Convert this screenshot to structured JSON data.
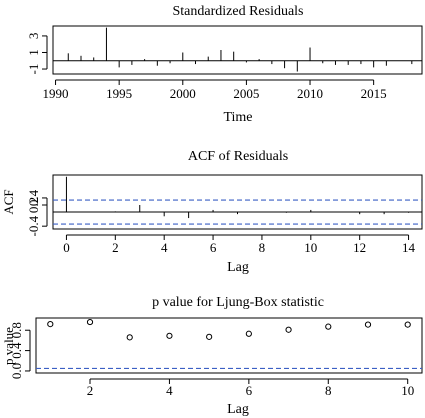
{
  "chart_data": [
    {
      "type": "bar",
      "title": "Standardized Residuals",
      "xlabel": "Time",
      "ylabel": "",
      "xlim": [
        1989.8,
        2018.8
      ],
      "ylim": [
        -1.6,
        4.2
      ],
      "xticks": [
        1990,
        1995,
        2000,
        2005,
        2010,
        2015
      ],
      "xtick_labels": [
        "1990",
        "1995",
        "2000",
        "2005",
        "2010",
        "2015"
      ],
      "yticks": [
        -1,
        1,
        3
      ],
      "ytick_labels": [
        "-1",
        "1",
        "3"
      ],
      "reference_lines": [
        {
          "axis": "y",
          "value": 0,
          "style": "solid",
          "color": "#000000"
        }
      ],
      "series": [
        {
          "x": [
            1991,
            1992,
            1993,
            1994,
            1995,
            1996,
            1997,
            1998,
            1999,
            2000,
            2001,
            2002,
            2003,
            2004,
            2005,
            2006,
            2007,
            2008,
            2009,
            2010,
            2011,
            2012,
            2013,
            2014,
            2015,
            2016,
            2017,
            2018
          ],
          "values": [
            0.9,
            0.6,
            0.4,
            4.0,
            -0.8,
            -0.5,
            0.2,
            -0.6,
            -0.3,
            1.0,
            -0.4,
            0.5,
            1.3,
            1.1,
            -0.2,
            0.2,
            -0.4,
            -0.9,
            -1.3,
            1.6,
            -0.3,
            -0.5,
            -0.5,
            -0.4,
            -0.8,
            -0.6,
            0.0,
            -0.4
          ]
        }
      ]
    },
    {
      "type": "bar",
      "title": "ACF of Residuals",
      "xlabel": "Lag",
      "ylabel": "ACF",
      "xlim": [
        -0.55,
        14.55
      ],
      "ylim": [
        -0.48,
        1.05
      ],
      "xticks": [
        0,
        2,
        4,
        6,
        8,
        10,
        12,
        14
      ],
      "xtick_labels": [
        "0",
        "2",
        "4",
        "6",
        "8",
        "10",
        "12",
        "14"
      ],
      "yticks": [
        -0.4,
        0.2,
        0.4
      ],
      "ytick_labels": [
        "-0.4",
        "0.2",
        "0.4"
      ],
      "reference_lines": [
        {
          "axis": "y",
          "value": 0,
          "style": "solid",
          "color": "#000000"
        },
        {
          "axis": "y",
          "value": 0.34,
          "style": "dashed",
          "color": "#3b5fc4"
        },
        {
          "axis": "y",
          "value": -0.34,
          "style": "dashed",
          "color": "#3b5fc4"
        }
      ],
      "series": [
        {
          "x": [
            0,
            1,
            2,
            3,
            4,
            5,
            6,
            7,
            8,
            9,
            10,
            11,
            12,
            13,
            14
          ],
          "values": [
            1.0,
            0.01,
            0.02,
            0.2,
            -0.12,
            -0.17,
            0.06,
            -0.06,
            0.0,
            -0.02,
            0.06,
            -0.01,
            -0.06,
            -0.06,
            -0.02
          ]
        }
      ]
    },
    {
      "type": "scatter",
      "title": "p value for Ljung-Box statistic",
      "xlabel": "Lag",
      "ylabel": "p value",
      "xlim": [
        0.64,
        10.36
      ],
      "ylim": [
        -0.04,
        1.04
      ],
      "xticks": [
        2,
        4,
        6,
        8,
        10
      ],
      "xtick_labels": [
        "2",
        "4",
        "6",
        "8",
        "10"
      ],
      "yticks": [
        0.0,
        0.4,
        0.8
      ],
      "ytick_labels": [
        "0.0",
        "0.4",
        "0.8"
      ],
      "reference_lines": [
        {
          "axis": "y",
          "value": 0.05,
          "style": "dashed",
          "color": "#3b5fc4"
        }
      ],
      "series": [
        {
          "x": [
            1,
            2,
            3,
            4,
            5,
            6,
            7,
            8,
            9,
            10
          ],
          "values": [
            0.92,
            0.96,
            0.66,
            0.69,
            0.67,
            0.73,
            0.81,
            0.87,
            0.91,
            0.91
          ]
        }
      ]
    }
  ]
}
